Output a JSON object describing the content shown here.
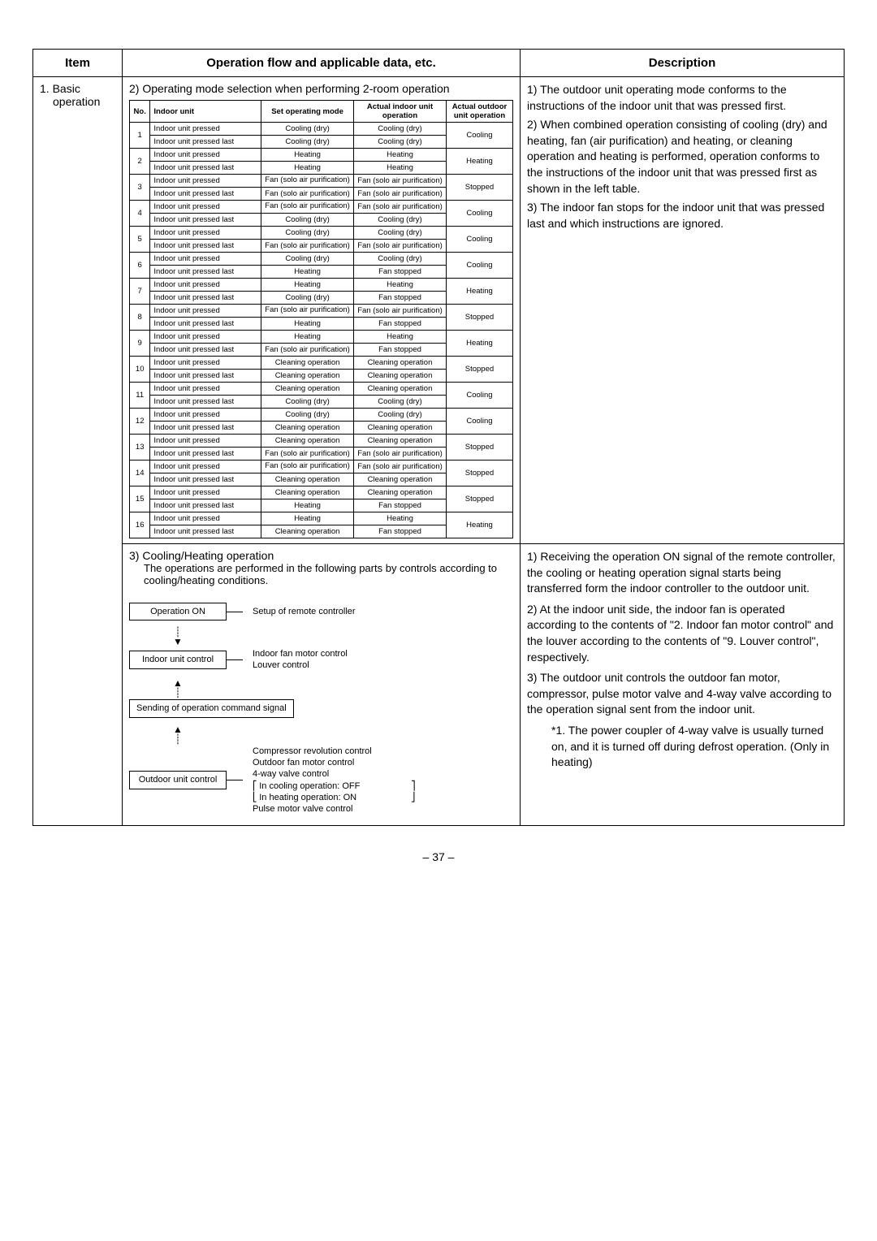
{
  "headers": {
    "item": "Item",
    "flow": "Operation flow and applicable data, etc.",
    "desc": "Description"
  },
  "item_label_1": "1.",
  "item_label_2": "Basic",
  "item_label_3": "operation",
  "section2_title": "2) Operating mode selection when performing 2-room operation",
  "mode_headers": {
    "no": "No.",
    "unit": "Indoor unit",
    "set": "Set operating mode",
    "actin": "Actual indoor unit operation",
    "actout": "Actual outdoor unit operation"
  },
  "units_pressed": "Indoor unit pressed",
  "units_last": "Indoor unit pressed last",
  "modes": {
    "cool": "Cooling (dry)",
    "heat": "Heating",
    "fan": "Fan (solo air purification)",
    "clean": "Cleaning operation",
    "fstop": "Fan stopped"
  },
  "outdoor": {
    "cool": "Cooling",
    "heat": "Heating",
    "stop": "Stopped"
  },
  "rows": [
    {
      "no": "1",
      "r": [
        [
          "cool",
          "cool"
        ],
        [
          "cool",
          "cool"
        ]
      ],
      "out": "cool"
    },
    {
      "no": "2",
      "r": [
        [
          "heat",
          "heat"
        ],
        [
          "heat",
          "heat"
        ]
      ],
      "out": "heat"
    },
    {
      "no": "3",
      "r": [
        [
          "fan",
          "fan"
        ],
        [
          "fan",
          "fan"
        ]
      ],
      "out": "stop"
    },
    {
      "no": "4",
      "r": [
        [
          "fan",
          "fan"
        ],
        [
          "cool",
          "cool"
        ]
      ],
      "out": "cool"
    },
    {
      "no": "5",
      "r": [
        [
          "cool",
          "cool"
        ],
        [
          "fan",
          "fan"
        ]
      ],
      "out": "cool"
    },
    {
      "no": "6",
      "r": [
        [
          "cool",
          "cool"
        ],
        [
          "heat",
          "fstop"
        ]
      ],
      "out": "cool"
    },
    {
      "no": "7",
      "r": [
        [
          "heat",
          "heat"
        ],
        [
          "cool",
          "fstop"
        ]
      ],
      "out": "heat"
    },
    {
      "no": "8",
      "r": [
        [
          "fan",
          "fan"
        ],
        [
          "heat",
          "fstop"
        ]
      ],
      "out": "stop"
    },
    {
      "no": "9",
      "r": [
        [
          "heat",
          "heat"
        ],
        [
          "fan",
          "fstop"
        ]
      ],
      "out": "heat"
    },
    {
      "no": "10",
      "r": [
        [
          "clean",
          "clean"
        ],
        [
          "clean",
          "clean"
        ]
      ],
      "out": "stop"
    },
    {
      "no": "11",
      "r": [
        [
          "clean",
          "clean"
        ],
        [
          "cool",
          "cool"
        ]
      ],
      "out": "cool"
    },
    {
      "no": "12",
      "r": [
        [
          "cool",
          "cool"
        ],
        [
          "clean",
          "clean"
        ]
      ],
      "out": "cool"
    },
    {
      "no": "13",
      "r": [
        [
          "clean",
          "clean"
        ],
        [
          "fan",
          "fan"
        ]
      ],
      "out": "stop"
    },
    {
      "no": "14",
      "r": [
        [
          "fan",
          "fan"
        ],
        [
          "clean",
          "clean"
        ]
      ],
      "out": "stop"
    },
    {
      "no": "15",
      "r": [
        [
          "clean",
          "clean"
        ],
        [
          "heat",
          "fstop"
        ]
      ],
      "out": "stop"
    },
    {
      "no": "16",
      "r": [
        [
          "heat",
          "heat"
        ],
        [
          "clean",
          "fstop"
        ]
      ],
      "out": "heat"
    }
  ],
  "desc1": {
    "p1": "1) The outdoor unit operating mode conforms to the instructions of the indoor unit that was pressed first.",
    "p2": "2) When combined operation consisting of cooling (dry) and heating, fan (air purification) and heating, or cleaning operation and heating is performed, operation conforms to the instructions of the indoor unit that was pressed first as shown in the left table.",
    "p3": "3) The indoor fan stops for the indoor unit that was pressed last and which instructions are ignored."
  },
  "section3_title": "3) Cooling/Heating operation",
  "section3_sub": "The operations are performed in the following parts by controls according to cooling/heating conditions.",
  "flow": {
    "b1": "Operation ON",
    "b1r": "Setup of remote controller",
    "b2": "Indoor unit control",
    "b2r1": "Indoor fan motor control",
    "b2r2": "Louver control",
    "b3": "Sending of operation command signal",
    "b4": "Outdoor unit control",
    "b4r1": "Compressor revolution control",
    "b4r2": "Outdoor fan motor control",
    "b4r3": "4-way valve control",
    "b4r4a": "In cooling operation: OFF",
    "b4r4b": "In heating operation: ON",
    "b4r5": "Pulse motor valve control"
  },
  "desc2": {
    "p1": "1) Receiving the operation ON signal of the remote controller, the cooling or heating operation signal starts being transferred form the indoor controller to the outdoor unit.",
    "p2": "2) At the indoor unit side, the indoor fan is operated according to the contents of \"2. Indoor fan motor control\" and the louver according to the contents of \"9. Louver control\", respectively.",
    "p3": "3) The outdoor unit controls the outdoor fan motor, compressor, pulse motor valve and 4-way valve according to the operation signal sent from the indoor unit.",
    "note": "*1. The power coupler of 4-way valve is usually turned on, and it is turned off during defrost operation. (Only in heating)"
  },
  "page_num": "– 37 –"
}
